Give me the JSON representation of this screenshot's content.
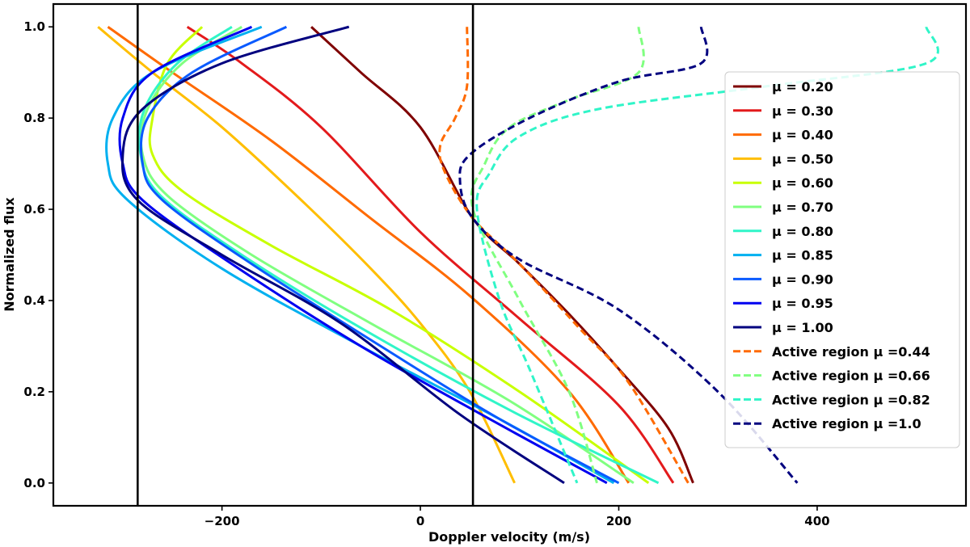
{
  "chart_data": {
    "type": "line",
    "title": "",
    "xlabel": "Doppler velocity (m/s)",
    "ylabel": "Normalized flux",
    "xlim": [
      -370,
      550
    ],
    "ylim": [
      -0.05,
      1.05
    ],
    "xticks": [
      -200,
      0,
      200,
      400
    ],
    "xtick_labels": [
      "−200",
      "0",
      "200",
      "400"
    ],
    "yticks": [
      0.0,
      0.2,
      0.4,
      0.6,
      0.8,
      1.0
    ],
    "ytick_labels": [
      "0.0",
      "0.2",
      "0.4",
      "0.6",
      "0.8",
      "1.0"
    ],
    "grid": false,
    "legend_position": "right",
    "vertical_lines": [
      {
        "name": "left-reference-line",
        "x": -285
      },
      {
        "name": "right-reference-line",
        "x": 53
      }
    ],
    "series": [
      {
        "name": "μ = 0.20",
        "color": "#7f0000",
        "style": "solid",
        "points": [
          [
            -110,
            1.0
          ],
          [
            -60,
            0.9
          ],
          [
            0,
            0.78
          ],
          [
            53,
            0.58
          ],
          [
            100,
            0.48
          ],
          [
            150,
            0.37
          ],
          [
            200,
            0.25
          ],
          [
            250,
            0.12
          ],
          [
            275,
            0.0
          ]
        ]
      },
      {
        "name": "μ = 0.30",
        "color": "#e31a1c",
        "style": "solid",
        "points": [
          [
            -235,
            1.0
          ],
          [
            -180,
            0.92
          ],
          [
            -100,
            0.78
          ],
          [
            0,
            0.55
          ],
          [
            100,
            0.36
          ],
          [
            200,
            0.17
          ],
          [
            255,
            0.0
          ]
        ]
      },
      {
        "name": "μ = 0.40",
        "color": "#ff6a00",
        "style": "solid",
        "points": [
          [
            -315,
            1.0
          ],
          [
            -250,
            0.9
          ],
          [
            -150,
            0.75
          ],
          [
            -50,
            0.58
          ],
          [
            50,
            0.41
          ],
          [
            150,
            0.2
          ],
          [
            210,
            0.0
          ]
        ]
      },
      {
        "name": "μ = 0.50",
        "color": "#ffbe00",
        "style": "solid",
        "points": [
          [
            -325,
            1.0
          ],
          [
            -270,
            0.9
          ],
          [
            -200,
            0.78
          ],
          [
            -120,
            0.62
          ],
          [
            -50,
            0.47
          ],
          [
            0,
            0.35
          ],
          [
            50,
            0.2
          ],
          [
            95,
            0.0
          ]
        ]
      },
      {
        "name": "μ = 0.60",
        "color": "#c8ff00",
        "style": "solid",
        "points": [
          [
            -220,
            1.0
          ],
          [
            -255,
            0.92
          ],
          [
            -270,
            0.8
          ],
          [
            -270,
            0.72
          ],
          [
            -240,
            0.64
          ],
          [
            -150,
            0.52
          ],
          [
            -30,
            0.38
          ],
          [
            100,
            0.2
          ],
          [
            230,
            0.0
          ]
        ]
      },
      {
        "name": "μ = 0.70",
        "color": "#80ff80",
        "style": "solid",
        "points": [
          [
            -180,
            1.0
          ],
          [
            -240,
            0.92
          ],
          [
            -275,
            0.82
          ],
          [
            -280,
            0.72
          ],
          [
            -255,
            0.63
          ],
          [
            -170,
            0.5
          ],
          [
            -50,
            0.35
          ],
          [
            90,
            0.18
          ],
          [
            215,
            0.0
          ]
        ]
      },
      {
        "name": "μ = 0.80",
        "color": "#30f5c8",
        "style": "solid",
        "points": [
          [
            -190,
            1.0
          ],
          [
            -245,
            0.92
          ],
          [
            -278,
            0.82
          ],
          [
            -282,
            0.72
          ],
          [
            -262,
            0.63
          ],
          [
            -180,
            0.5
          ],
          [
            -60,
            0.34
          ],
          [
            90,
            0.16
          ],
          [
            240,
            0.0
          ]
        ]
      },
      {
        "name": "μ = 0.85",
        "color": "#00b0f0",
        "style": "solid",
        "points": [
          [
            -160,
            1.0
          ],
          [
            -270,
            0.9
          ],
          [
            -310,
            0.8
          ],
          [
            -315,
            0.7
          ],
          [
            -295,
            0.62
          ],
          [
            -200,
            0.47
          ],
          [
            -60,
            0.3
          ],
          [
            80,
            0.14
          ],
          [
            195,
            0.0
          ]
        ]
      },
      {
        "name": "μ = 0.90",
        "color": "#0a5aff",
        "style": "solid",
        "points": [
          [
            -135,
            1.0
          ],
          [
            -230,
            0.9
          ],
          [
            -275,
            0.8
          ],
          [
            -280,
            0.7
          ],
          [
            -260,
            0.62
          ],
          [
            -170,
            0.48
          ],
          [
            -40,
            0.3
          ],
          [
            80,
            0.14
          ],
          [
            200,
            0.0
          ]
        ]
      },
      {
        "name": "μ = 0.95",
        "color": "#0000f0",
        "style": "solid",
        "points": [
          [
            -170,
            1.0
          ],
          [
            -270,
            0.9
          ],
          [
            -300,
            0.8
          ],
          [
            -300,
            0.7
          ],
          [
            -280,
            0.62
          ],
          [
            -190,
            0.48
          ],
          [
            -60,
            0.3
          ],
          [
            70,
            0.14
          ],
          [
            188,
            0.0
          ]
        ]
      },
      {
        "name": "μ = 1.00",
        "color": "#00007f",
        "style": "solid",
        "points": [
          [
            -72,
            1.0
          ],
          [
            -200,
            0.92
          ],
          [
            -280,
            0.82
          ],
          [
            -300,
            0.72
          ],
          [
            -285,
            0.62
          ],
          [
            -200,
            0.5
          ],
          [
            -80,
            0.35
          ],
          [
            40,
            0.15
          ],
          [
            145,
            0.0
          ]
        ]
      },
      {
        "name": "Active region μ =0.44",
        "color": "#ff6a00",
        "style": "dashed",
        "points": [
          [
            47,
            1.0
          ],
          [
            47,
            0.87
          ],
          [
            35,
            0.8
          ],
          [
            20,
            0.74
          ],
          [
            25,
            0.68
          ],
          [
            53,
            0.58
          ],
          [
            100,
            0.48
          ],
          [
            160,
            0.34
          ],
          [
            210,
            0.22
          ],
          [
            270,
            0.0
          ]
        ]
      },
      {
        "name": "Active region μ =0.66",
        "color": "#80ff80",
        "style": "dashed",
        "points": [
          [
            220,
            1.0
          ],
          [
            220,
            0.9
          ],
          [
            150,
            0.84
          ],
          [
            90,
            0.78
          ],
          [
            65,
            0.7
          ],
          [
            53,
            0.6
          ],
          [
            100,
            0.4
          ],
          [
            150,
            0.2
          ],
          [
            178,
            0.0
          ]
        ]
      },
      {
        "name": "Active region μ =0.82",
        "color": "#30f5c8",
        "style": "dashed",
        "points": [
          [
            510,
            1.0
          ],
          [
            510,
            0.92
          ],
          [
            350,
            0.87
          ],
          [
            180,
            0.82
          ],
          [
            100,
            0.76
          ],
          [
            70,
            0.68
          ],
          [
            57,
            0.6
          ],
          [
            80,
            0.4
          ],
          [
            110,
            0.25
          ],
          [
            158,
            0.0
          ]
        ]
      },
      {
        "name": "Active region μ =1.0",
        "color": "#00007f",
        "style": "dashed",
        "points": [
          [
            283,
            1.0
          ],
          [
            283,
            0.92
          ],
          [
            200,
            0.88
          ],
          [
            110,
            0.8
          ],
          [
            50,
            0.72
          ],
          [
            40,
            0.66
          ],
          [
            53,
            0.58
          ],
          [
            100,
            0.49
          ],
          [
            200,
            0.38
          ],
          [
            300,
            0.2
          ],
          [
            380,
            0.0
          ]
        ]
      }
    ]
  }
}
